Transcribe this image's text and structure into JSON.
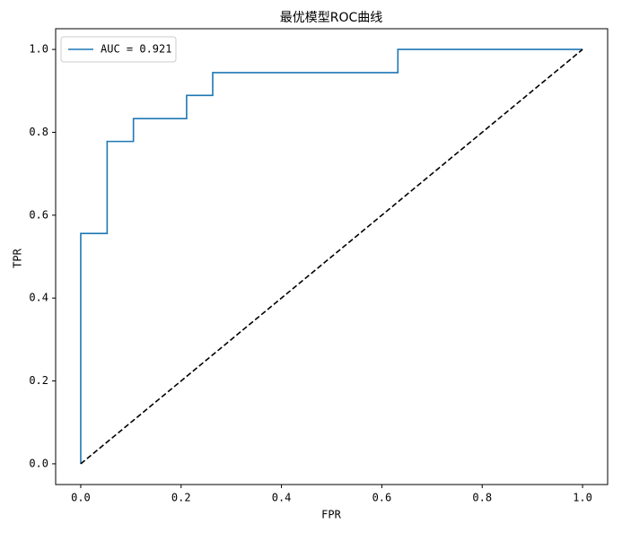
{
  "chart_data": {
    "type": "line",
    "title": "最优模型ROC曲线",
    "x_label": "FPR",
    "y_label": "TPR",
    "xlim": [
      -0.05,
      1.05
    ],
    "ylim": [
      -0.05,
      1.05
    ],
    "xticks": [
      {
        "value": 0,
        "label": "0.0"
      },
      0.2,
      0.4,
      0.6,
      0.8,
      {
        "value": 1,
        "label": "1.0"
      }
    ],
    "yticks": [
      {
        "value": 0,
        "label": "0.0"
      },
      0.2,
      0.4,
      0.6,
      0.8,
      {
        "value": 1,
        "label": "1.0"
      }
    ],
    "legend": "upper left",
    "series": [
      {
        "name": "AUC = 0.921",
        "color": "#1f77b4",
        "linestyle": "solid",
        "x": [
          0,
          0,
          0.0526,
          0.0526,
          0.105,
          0.105,
          0.211,
          0.211,
          0.263,
          0.263,
          0.632,
          0.632,
          1
        ],
        "values": [
          0,
          0.556,
          0.556,
          0.778,
          0.778,
          0.833,
          0.833,
          0.889,
          0.889,
          0.944,
          0.944,
          1,
          1
        ]
      },
      {
        "color": "#000000",
        "linestyle": "dashed",
        "x": [
          0,
          1
        ],
        "values": [
          0,
          1
        ]
      }
    ]
  }
}
